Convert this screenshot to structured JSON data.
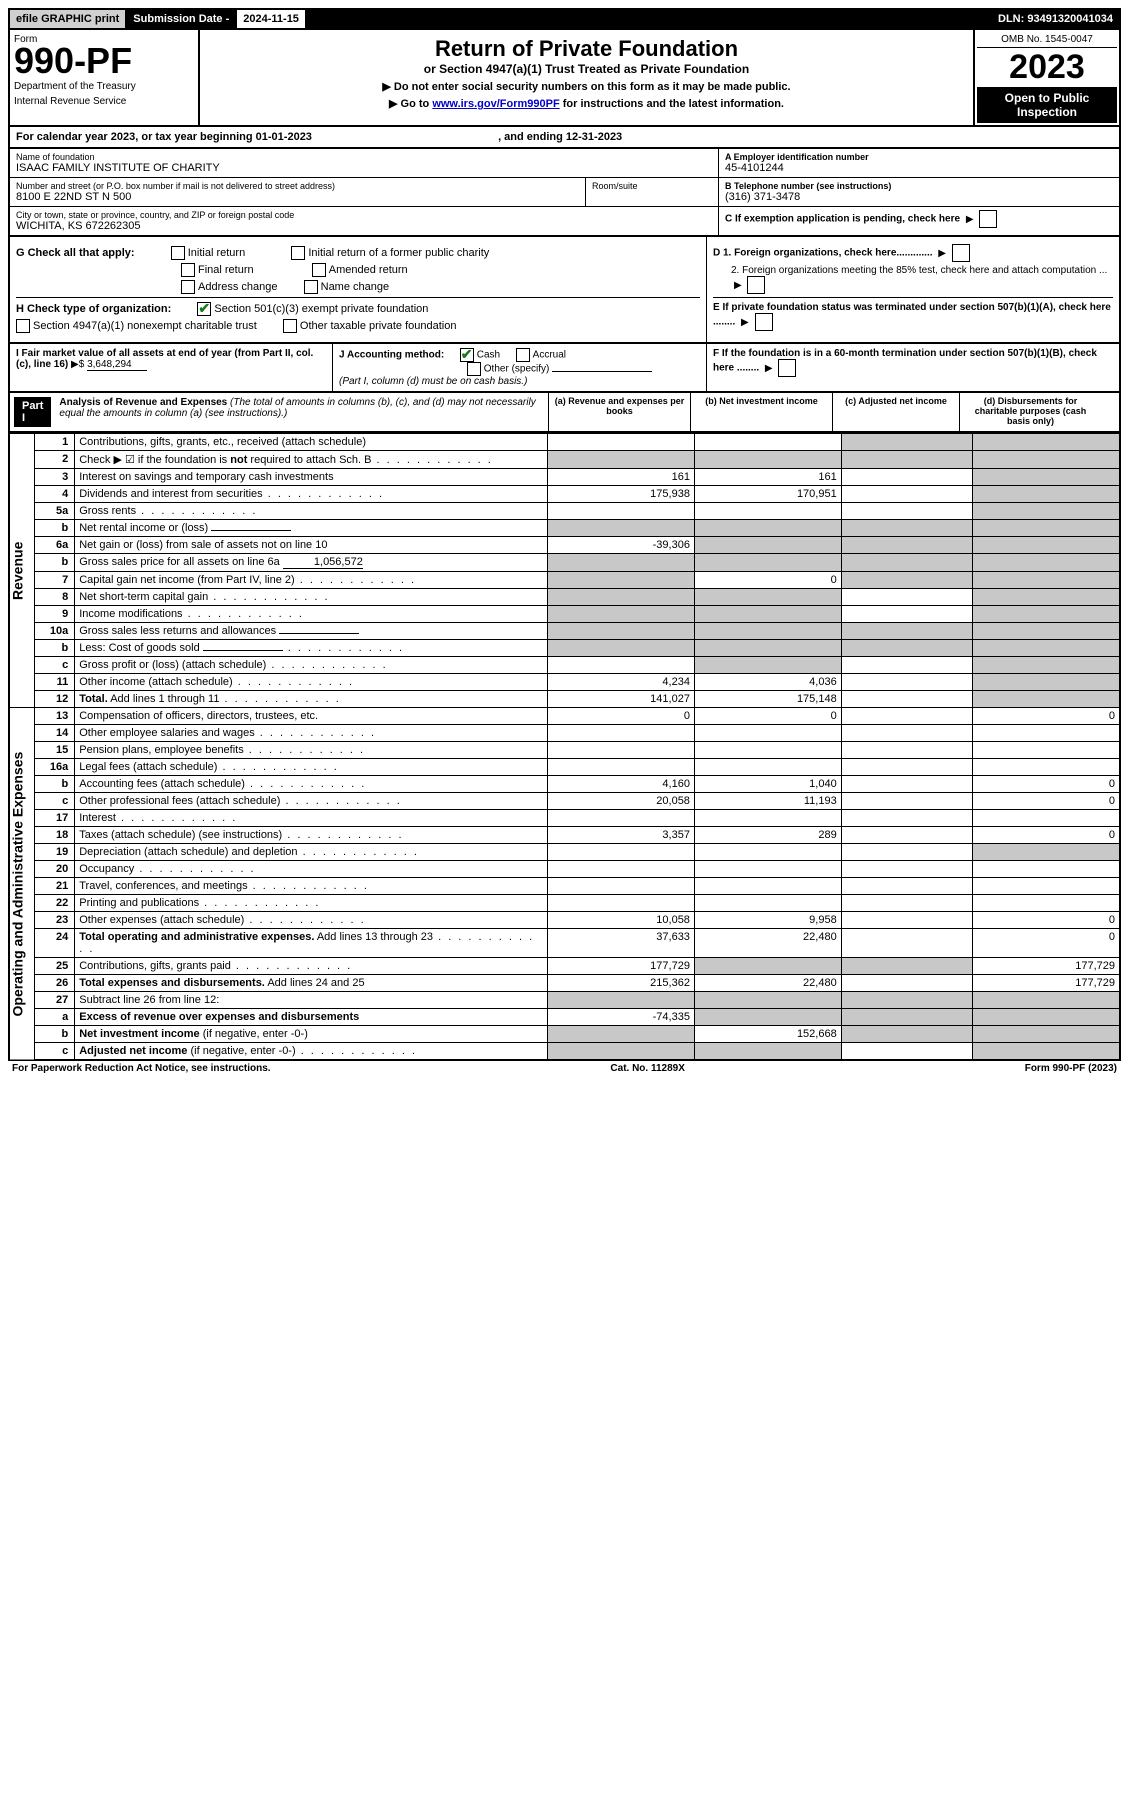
{
  "top": {
    "efile": "efile GRAPHIC print",
    "sub_label": "Submission Date - ",
    "sub_date": "2024-11-15",
    "dln": "DLN: 93491320041034"
  },
  "header": {
    "form_label": "Form",
    "form_num": "990-PF",
    "dept1": "Department of the Treasury",
    "dept2": "Internal Revenue Service",
    "title": "Return of Private Foundation",
    "subtitle": "or Section 4947(a)(1) Trust Treated as Private Foundation",
    "instruct1": "▶ Do not enter social security numbers on this form as it may be made public.",
    "instruct2": "▶ Go to ",
    "instruct2_link": "www.irs.gov/Form990PF",
    "instruct2_tail": " for instructions and the latest information.",
    "omb": "OMB No. 1545-0047",
    "year": "2023",
    "open": "Open to Public Inspection"
  },
  "cal": {
    "text1": "For calendar year 2023, or tax year beginning ",
    "begin": "01-01-2023",
    "text2": ", and ending ",
    "end": "12-31-2023"
  },
  "entity": {
    "name_label": "Name of foundation",
    "name": "ISAAC FAMILY INSTITUTE OF CHARITY",
    "addr_label": "Number and street (or P.O. box number if mail is not delivered to street address)",
    "addr": "8100 E 22ND ST N 500",
    "room_label": "Room/suite",
    "city_label": "City or town, state or province, country, and ZIP or foreign postal code",
    "city": "WICHITA, KS  672262305",
    "a_label": "A Employer identification number",
    "a_val": "45-4101244",
    "b_label": "B Telephone number (see instructions)",
    "b_val": "(316) 371-3478",
    "c_label": "C If exemption application is pending, check here"
  },
  "checks": {
    "g_label": "G Check all that apply:",
    "g1": "Initial return",
    "g2": "Initial return of a former public charity",
    "g3": "Final return",
    "g4": "Amended return",
    "g5": "Address change",
    "g6": "Name change",
    "h_label": "H Check type of organization:",
    "h1": "Section 501(c)(3) exempt private foundation",
    "h2": "Section 4947(a)(1) nonexempt charitable trust",
    "h3": "Other taxable private foundation",
    "d1": "D 1. Foreign organizations, check here.............",
    "d2": "2. Foreign organizations meeting the 85% test, check here and attach computation ...",
    "e": "E  If private foundation status was terminated under section 507(b)(1)(A), check here ........"
  },
  "ij": {
    "i1": "I Fair market value of all assets at end of year (from Part II, col. (c), line 16)",
    "i_arrow": "▶$",
    "i_val": "3,648,294",
    "j_label": "J Accounting method:",
    "j1": "Cash",
    "j2": "Accrual",
    "j3": "Other (specify)",
    "j_note": "(Part I, column (d) must be on cash basis.)",
    "f": "F  If the foundation is in a 60-month termination under section 507(b)(1)(B), check here ........"
  },
  "part1": {
    "label": "Part I",
    "title": "Analysis of Revenue and Expenses",
    "note": "(The total of amounts in columns (b), (c), and (d) may not necessarily equal the amounts in column (a) (see instructions).)",
    "col_a": "(a) Revenue and expenses per books",
    "col_b": "(b) Net investment income",
    "col_c": "(c) Adjusted net income",
    "col_d": "(d) Disbursements for charitable purposes (cash basis only)"
  },
  "sections": {
    "revenue": "Revenue",
    "expenses": "Operating and Administrative Expenses"
  },
  "rows": [
    {
      "n": "1",
      "d": "Contributions, gifts, grants, etc., received (attach schedule)",
      "a": "",
      "b": "",
      "c": "g",
      "dd": "g"
    },
    {
      "n": "2",
      "d": "Check ▶ ☑ if the foundation is <b>not</b> required to attach Sch. B",
      "dots": 1,
      "a": "g",
      "b": "g",
      "c": "g",
      "dd": "g"
    },
    {
      "n": "3",
      "d": "Interest on savings and temporary cash investments",
      "a": "161",
      "b": "161",
      "c": "",
      "dd": "g"
    },
    {
      "n": "4",
      "d": "Dividends and interest from securities",
      "dots": 1,
      "a": "175,938",
      "b": "170,951",
      "c": "",
      "dd": "g"
    },
    {
      "n": "5a",
      "d": "Gross rents",
      "dots": 1,
      "a": "",
      "b": "",
      "c": "",
      "dd": "g"
    },
    {
      "n": "b",
      "d": "Net rental income or (loss)",
      "uline": 1,
      "a": "g",
      "b": "g",
      "c": "g",
      "dd": "g"
    },
    {
      "n": "6a",
      "d": "Net gain or (loss) from sale of assets not on line 10",
      "a": "-39,306",
      "b": "g",
      "c": "g",
      "dd": "g"
    },
    {
      "n": "b",
      "d": "Gross sales price for all assets on line 6a",
      "uline": 1,
      "uval": "1,056,572",
      "a": "g",
      "b": "g",
      "c": "g",
      "dd": "g"
    },
    {
      "n": "7",
      "d": "Capital gain net income (from Part IV, line 2)",
      "dots": 1,
      "a": "g",
      "b": "0",
      "c": "g",
      "dd": "g"
    },
    {
      "n": "8",
      "d": "Net short-term capital gain",
      "dots": 1,
      "a": "g",
      "b": "g",
      "c": "",
      "dd": "g"
    },
    {
      "n": "9",
      "d": "Income modifications",
      "dots": 1,
      "a": "g",
      "b": "g",
      "c": "",
      "dd": "g"
    },
    {
      "n": "10a",
      "d": "Gross sales less returns and allowances",
      "uline": 1,
      "a": "g",
      "b": "g",
      "c": "g",
      "dd": "g"
    },
    {
      "n": "b",
      "d": "Less: Cost of goods sold",
      "dots": 1,
      "uline": 1,
      "a": "g",
      "b": "g",
      "c": "g",
      "dd": "g"
    },
    {
      "n": "c",
      "d": "Gross profit or (loss) (attach schedule)",
      "dots": 1,
      "a": "",
      "b": "g",
      "c": "",
      "dd": "g"
    },
    {
      "n": "11",
      "d": "Other income (attach schedule)",
      "dots": 1,
      "a": "4,234",
      "b": "4,036",
      "c": "",
      "dd": "g"
    },
    {
      "n": "12",
      "d": "<b>Total.</b> Add lines 1 through 11",
      "dots": 1,
      "a": "141,027",
      "b": "175,148",
      "c": "",
      "dd": "g"
    }
  ],
  "exp_rows": [
    {
      "n": "13",
      "d": "Compensation of officers, directors, trustees, etc.",
      "a": "0",
      "b": "0",
      "c": "",
      "dd": "0"
    },
    {
      "n": "14",
      "d": "Other employee salaries and wages",
      "dots": 1,
      "a": "",
      "b": "",
      "c": "",
      "dd": ""
    },
    {
      "n": "15",
      "d": "Pension plans, employee benefits",
      "dots": 1,
      "a": "",
      "b": "",
      "c": "",
      "dd": ""
    },
    {
      "n": "16a",
      "d": "Legal fees (attach schedule)",
      "dots": 1,
      "a": "",
      "b": "",
      "c": "",
      "dd": ""
    },
    {
      "n": "b",
      "d": "Accounting fees (attach schedule)",
      "dots": 1,
      "a": "4,160",
      "b": "1,040",
      "c": "",
      "dd": "0"
    },
    {
      "n": "c",
      "d": "Other professional fees (attach schedule)",
      "dots": 1,
      "a": "20,058",
      "b": "11,193",
      "c": "",
      "dd": "0"
    },
    {
      "n": "17",
      "d": "Interest",
      "dots": 1,
      "a": "",
      "b": "",
      "c": "",
      "dd": ""
    },
    {
      "n": "18",
      "d": "Taxes (attach schedule) (see instructions)",
      "dots": 1,
      "a": "3,357",
      "b": "289",
      "c": "",
      "dd": "0"
    },
    {
      "n": "19",
      "d": "Depreciation (attach schedule) and depletion",
      "dots": 1,
      "a": "",
      "b": "",
      "c": "",
      "dd": "g"
    },
    {
      "n": "20",
      "d": "Occupancy",
      "dots": 1,
      "a": "",
      "b": "",
      "c": "",
      "dd": ""
    },
    {
      "n": "21",
      "d": "Travel, conferences, and meetings",
      "dots": 1,
      "a": "",
      "b": "",
      "c": "",
      "dd": ""
    },
    {
      "n": "22",
      "d": "Printing and publications",
      "dots": 1,
      "a": "",
      "b": "",
      "c": "",
      "dd": ""
    },
    {
      "n": "23",
      "d": "Other expenses (attach schedule)",
      "dots": 1,
      "a": "10,058",
      "b": "9,958",
      "c": "",
      "dd": "0"
    },
    {
      "n": "24",
      "d": "<b>Total operating and administrative expenses.</b> Add lines 13 through 23",
      "dots": 1,
      "a": "37,633",
      "b": "22,480",
      "c": "",
      "dd": "0"
    },
    {
      "n": "25",
      "d": "Contributions, gifts, grants paid",
      "dots": 1,
      "a": "177,729",
      "b": "g",
      "c": "g",
      "dd": "177,729"
    },
    {
      "n": "26",
      "d": "<b>Total expenses and disbursements.</b> Add lines 24 and 25",
      "a": "215,362",
      "b": "22,480",
      "c": "",
      "dd": "177,729"
    },
    {
      "n": "27",
      "d": "Subtract line 26 from line 12:",
      "a": "g",
      "b": "g",
      "c": "g",
      "dd": "g"
    },
    {
      "n": "a",
      "d": "<b>Excess of revenue over expenses and disbursements</b>",
      "a": "-74,335",
      "b": "g",
      "c": "g",
      "dd": "g"
    },
    {
      "n": "b",
      "d": "<b>Net investment income</b> (if negative, enter -0-)",
      "a": "g",
      "b": "152,668",
      "c": "g",
      "dd": "g"
    },
    {
      "n": "c",
      "d": "<b>Adjusted net income</b> (if negative, enter -0-)",
      "dots": 1,
      "a": "g",
      "b": "g",
      "c": "",
      "dd": "g"
    }
  ],
  "footer": {
    "left": "For Paperwork Reduction Act Notice, see instructions.",
    "mid": "Cat. No. 11289X",
    "right": "Form 990-PF (2023)"
  }
}
